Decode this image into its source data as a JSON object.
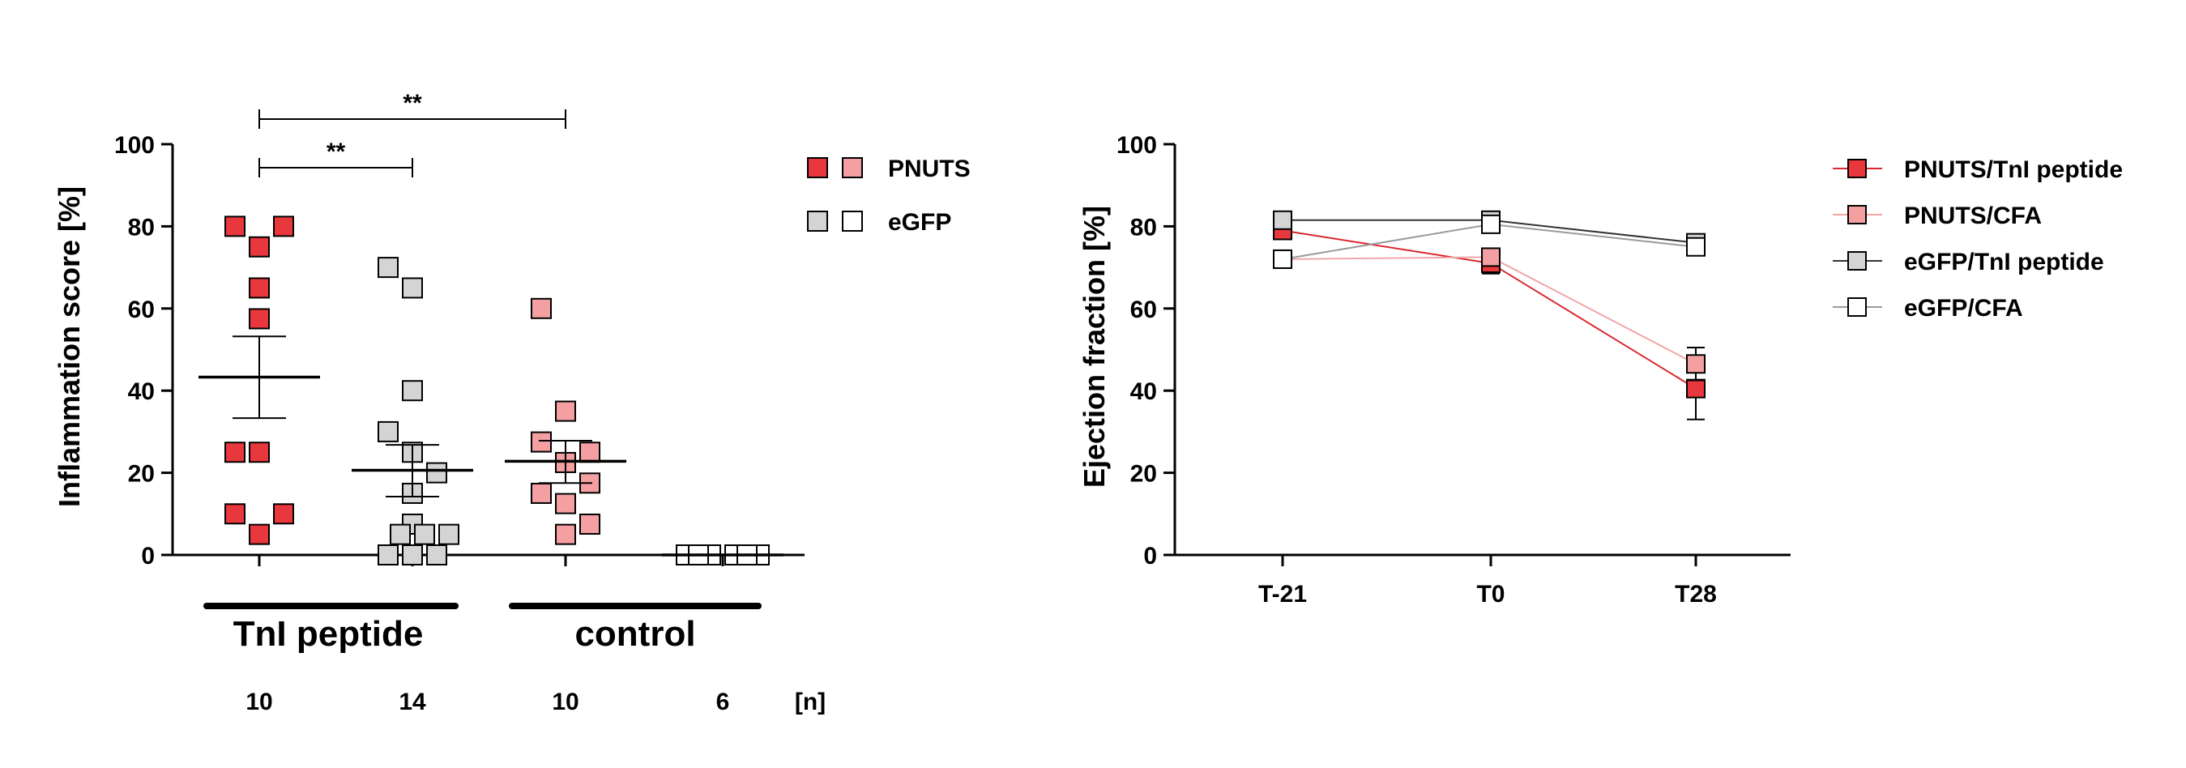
{
  "colors": {
    "pnuts_tni": "#e8373d",
    "pnuts_cfa": "#f4a0a2",
    "egfp_tni": "#d4d4d4",
    "egfp_cfa": "#ffffff",
    "pnuts_tni_line": "#d9282e",
    "pnuts_cfa_line": "#f0a6a8",
    "egfp_tni_line": "#333333",
    "egfp_cfa_line": "#9a9a9a",
    "stroke": "#000000"
  },
  "chart_data": [
    {
      "type": "scatter",
      "title": "",
      "ylabel": "Inflammation score [%]",
      "ylim": [
        0,
        100
      ],
      "yticks": [
        0,
        20,
        40,
        60,
        80,
        100
      ],
      "legend_placement": "top-right",
      "legend": [
        {
          "label": "PNUTS",
          "swatches": [
            "pnuts_tni",
            "pnuts_cfa"
          ]
        },
        {
          "label": "eGFP",
          "swatches": [
            "egfp_tni",
            "egfp_cfa"
          ]
        }
      ],
      "group_labels": [
        "TnI peptide",
        "control"
      ],
      "n_header": "[n]",
      "series": [
        {
          "color": "pnuts_tni",
          "n": "10",
          "mean": 43.3,
          "sem_low": 33.3,
          "sem_high": 53.2,
          "values": [
            80,
            80,
            75,
            65,
            57.5,
            25,
            25,
            10,
            10,
            5
          ]
        },
        {
          "color": "egfp_tni",
          "n": "14",
          "mean": 20.6,
          "sem_low": 14.2,
          "sem_high": 26.8,
          "values": [
            70,
            65,
            40,
            30,
            25,
            20,
            15,
            7.5,
            5,
            5,
            5,
            0,
            0,
            0
          ]
        },
        {
          "color": "pnuts_cfa",
          "n": "10",
          "mean": 22.8,
          "sem_low": 17.5,
          "sem_high": 27.8,
          "values": [
            60,
            35,
            27.5,
            25,
            22.5,
            17.5,
            15,
            12.5,
            7.5,
            5
          ]
        },
        {
          "color": "egfp_cfa",
          "n": "6",
          "mean": 0,
          "sem_low": 0,
          "sem_high": 0,
          "values": [
            0,
            0,
            0,
            0,
            0,
            0
          ]
        }
      ],
      "significance": [
        {
          "from": 0,
          "to": 2,
          "label": "**",
          "level": 2
        },
        {
          "from": 0,
          "to": 1,
          "label": "**",
          "level": 1
        }
      ]
    },
    {
      "type": "line",
      "title": "",
      "ylabel": "Ejection fraction [%]",
      "ylim": [
        0,
        100
      ],
      "yticks": [
        0,
        20,
        40,
        60,
        80,
        100
      ],
      "categories": [
        "T-21",
        "T0",
        "T28"
      ],
      "legend_placement": "top-right",
      "series": [
        {
          "name": "PNUTS/TnI peptide",
          "color": "pnuts_tni",
          "line": "pnuts_tni_line",
          "values": [
            79,
            71,
            40.5
          ],
          "err": [
            1.5,
            2.5,
            7.5
          ]
        },
        {
          "name": "PNUTS/CFA",
          "color": "pnuts_cfa",
          "line": "pnuts_cfa_line",
          "values": [
            72,
            72.5,
            46.5
          ],
          "err": [
            1.2,
            2.0,
            4
          ]
        },
        {
          "name": "eGFP/TnI peptide",
          "color": "egfp_tni",
          "line": "egfp_tni_line",
          "values": [
            81.5,
            81.5,
            76
          ],
          "err": [
            1.2,
            1.5,
            1.5
          ]
        },
        {
          "name": "eGFP/CFA",
          "color": "egfp_cfa",
          "line": "egfp_cfa_line",
          "values": [
            72,
            80.5,
            75
          ],
          "err": [
            1.2,
            2.0,
            2
          ]
        }
      ]
    }
  ]
}
